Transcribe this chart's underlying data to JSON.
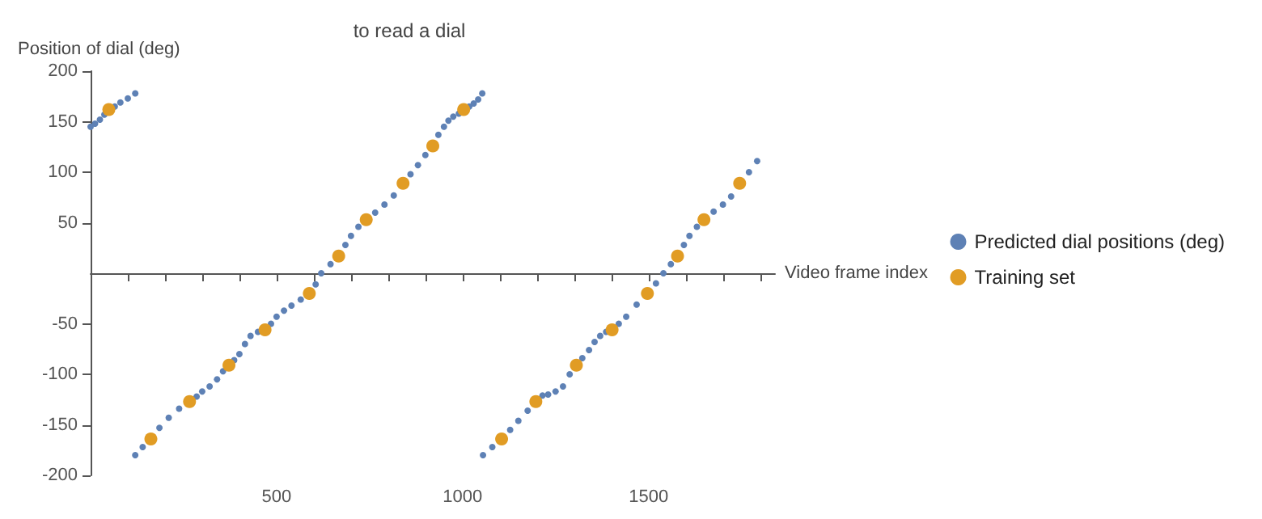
{
  "chart_data": {
    "type": "scatter",
    "title": "to read a dial",
    "xlabel": "Video frame index",
    "ylabel": "Position of dial (deg)",
    "xlim": [
      0,
      1840
    ],
    "ylim": [
      -200,
      200
    ],
    "xticks": [
      {
        "value": 100,
        "label": null
      },
      {
        "value": 200,
        "label": null
      },
      {
        "value": 300,
        "label": null
      },
      {
        "value": 400,
        "label": null
      },
      500,
      {
        "value": 600,
        "label": null
      },
      {
        "value": 700,
        "label": null
      },
      {
        "value": 800,
        "label": null
      },
      {
        "value": 900,
        "label": null
      },
      1000,
      {
        "value": 1100,
        "label": null
      },
      {
        "value": 1200,
        "label": null
      },
      {
        "value": 1300,
        "label": null
      },
      {
        "value": 1400,
        "label": null
      },
      1500,
      {
        "value": 1600,
        "label": null
      },
      {
        "value": 1700,
        "label": null
      },
      {
        "value": 1800,
        "label": null
      }
    ],
    "yticks": [
      -200,
      -150,
      -100,
      -50,
      50,
      100,
      150,
      200
    ],
    "legend": "right",
    "grid": false,
    "marker": "circle",
    "series": [
      {
        "name": "Predicted dial positions (deg)",
        "color": "#5e81b5",
        "x": [
          0,
          12,
          25,
          37,
          65,
          80,
          100,
          120,
          120,
          140,
          185,
          210,
          238,
          285,
          300,
          320,
          340,
          356,
          386,
          400,
          415,
          430,
          450,
          485,
          500,
          520,
          540,
          565,
          605,
          620,
          645,
          685,
          700,
          720,
          765,
          790,
          815,
          860,
          880,
          900,
          935,
          950,
          962,
          975,
          990,
          1018,
          1030,
          1042,
          1053,
          1055,
          1080,
          1128,
          1150,
          1175,
          1215,
          1230,
          1250,
          1270,
          1288,
          1322,
          1340,
          1355,
          1370,
          1386,
          1420,
          1440,
          1468,
          1520,
          1540,
          1560,
          1595,
          1610,
          1630,
          1675,
          1700,
          1722,
          1770,
          1792
        ],
        "values": [
          145,
          148,
          152,
          157,
          165,
          169,
          173,
          178,
          -180,
          -172,
          -153,
          -143,
          -134,
          -122,
          -117,
          -112,
          -105,
          -97,
          -86,
          -80,
          -70,
          -62,
          -58,
          -50,
          -43,
          -37,
          -32,
          -26,
          -11,
          0,
          9,
          28,
          37,
          46,
          60,
          68,
          77,
          98,
          107,
          117,
          137,
          145,
          151,
          155,
          158,
          165,
          168,
          172,
          178,
          -180,
          -172,
          -155,
          -146,
          -136,
          -121,
          -120,
          -117,
          -112,
          -100,
          -84,
          -76,
          -68,
          -62,
          -58,
          -50,
          -43,
          -31,
          -10,
          0,
          9,
          28,
          37,
          46,
          61,
          68,
          76,
          100,
          111
        ]
      },
      {
        "name": "Training set",
        "color": "#e19c24",
        "x": [
          49,
          162,
          266,
          372,
          469,
          588,
          667,
          741,
          840,
          920,
          1003,
          1105,
          1197,
          1306,
          1402,
          1497,
          1578,
          1649,
          1745
        ],
        "values": [
          162,
          -164,
          -127,
          -91,
          -56,
          -20,
          17,
          53,
          89,
          126,
          162,
          -164,
          -127,
          -91,
          -56,
          -20,
          17,
          53,
          89
        ]
      }
    ]
  }
}
